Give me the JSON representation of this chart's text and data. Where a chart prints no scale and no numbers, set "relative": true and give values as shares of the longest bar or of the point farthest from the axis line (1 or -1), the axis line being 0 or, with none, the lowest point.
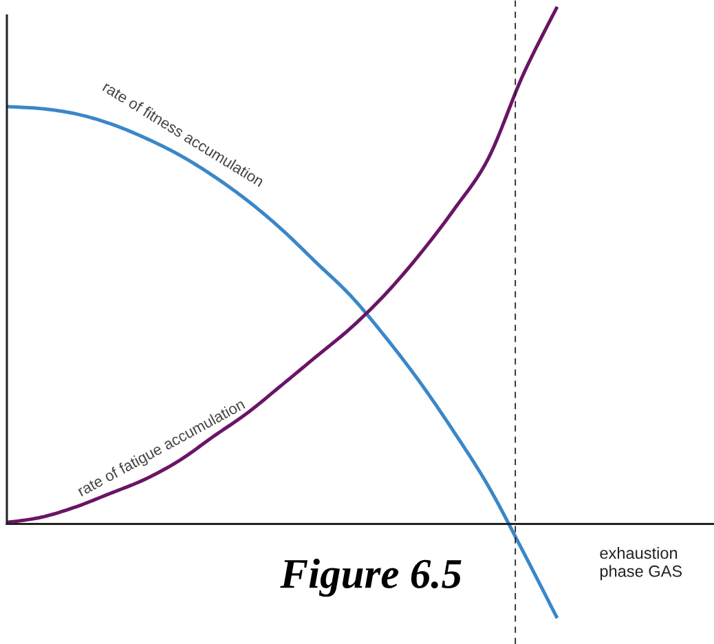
{
  "chart_data": {
    "type": "line",
    "relative": true,
    "categories": [
      null,
      null,
      null,
      null,
      null,
      null,
      null,
      null,
      null,
      null,
      null,
      null,
      null,
      null,
      null,
      null,
      null
    ],
    "series": [
      {
        "name": "rate of fitness accumulation",
        "color": "#3a87c8",
        "values": [
          0.807,
          0.803,
          0.793,
          0.774,
          0.747,
          0.714,
          0.673,
          0.625,
          0.569,
          0.505,
          0.441,
          0.362,
          0.275,
          0.178,
          0.073,
          -0.052,
          -0.182
        ]
      },
      {
        "name": "rate of fatigue accumulation",
        "color": "#6a1566",
        "values": [
          0.003,
          0.013,
          0.033,
          0.059,
          0.086,
          0.122,
          0.169,
          0.215,
          0.269,
          0.324,
          0.379,
          0.444,
          0.521,
          0.608,
          0.707,
          0.867,
          1
        ]
      }
    ],
    "annotations": [
      "exhaustion\nphase GAS",
      "Figure 6.5"
    ]
  }
}
